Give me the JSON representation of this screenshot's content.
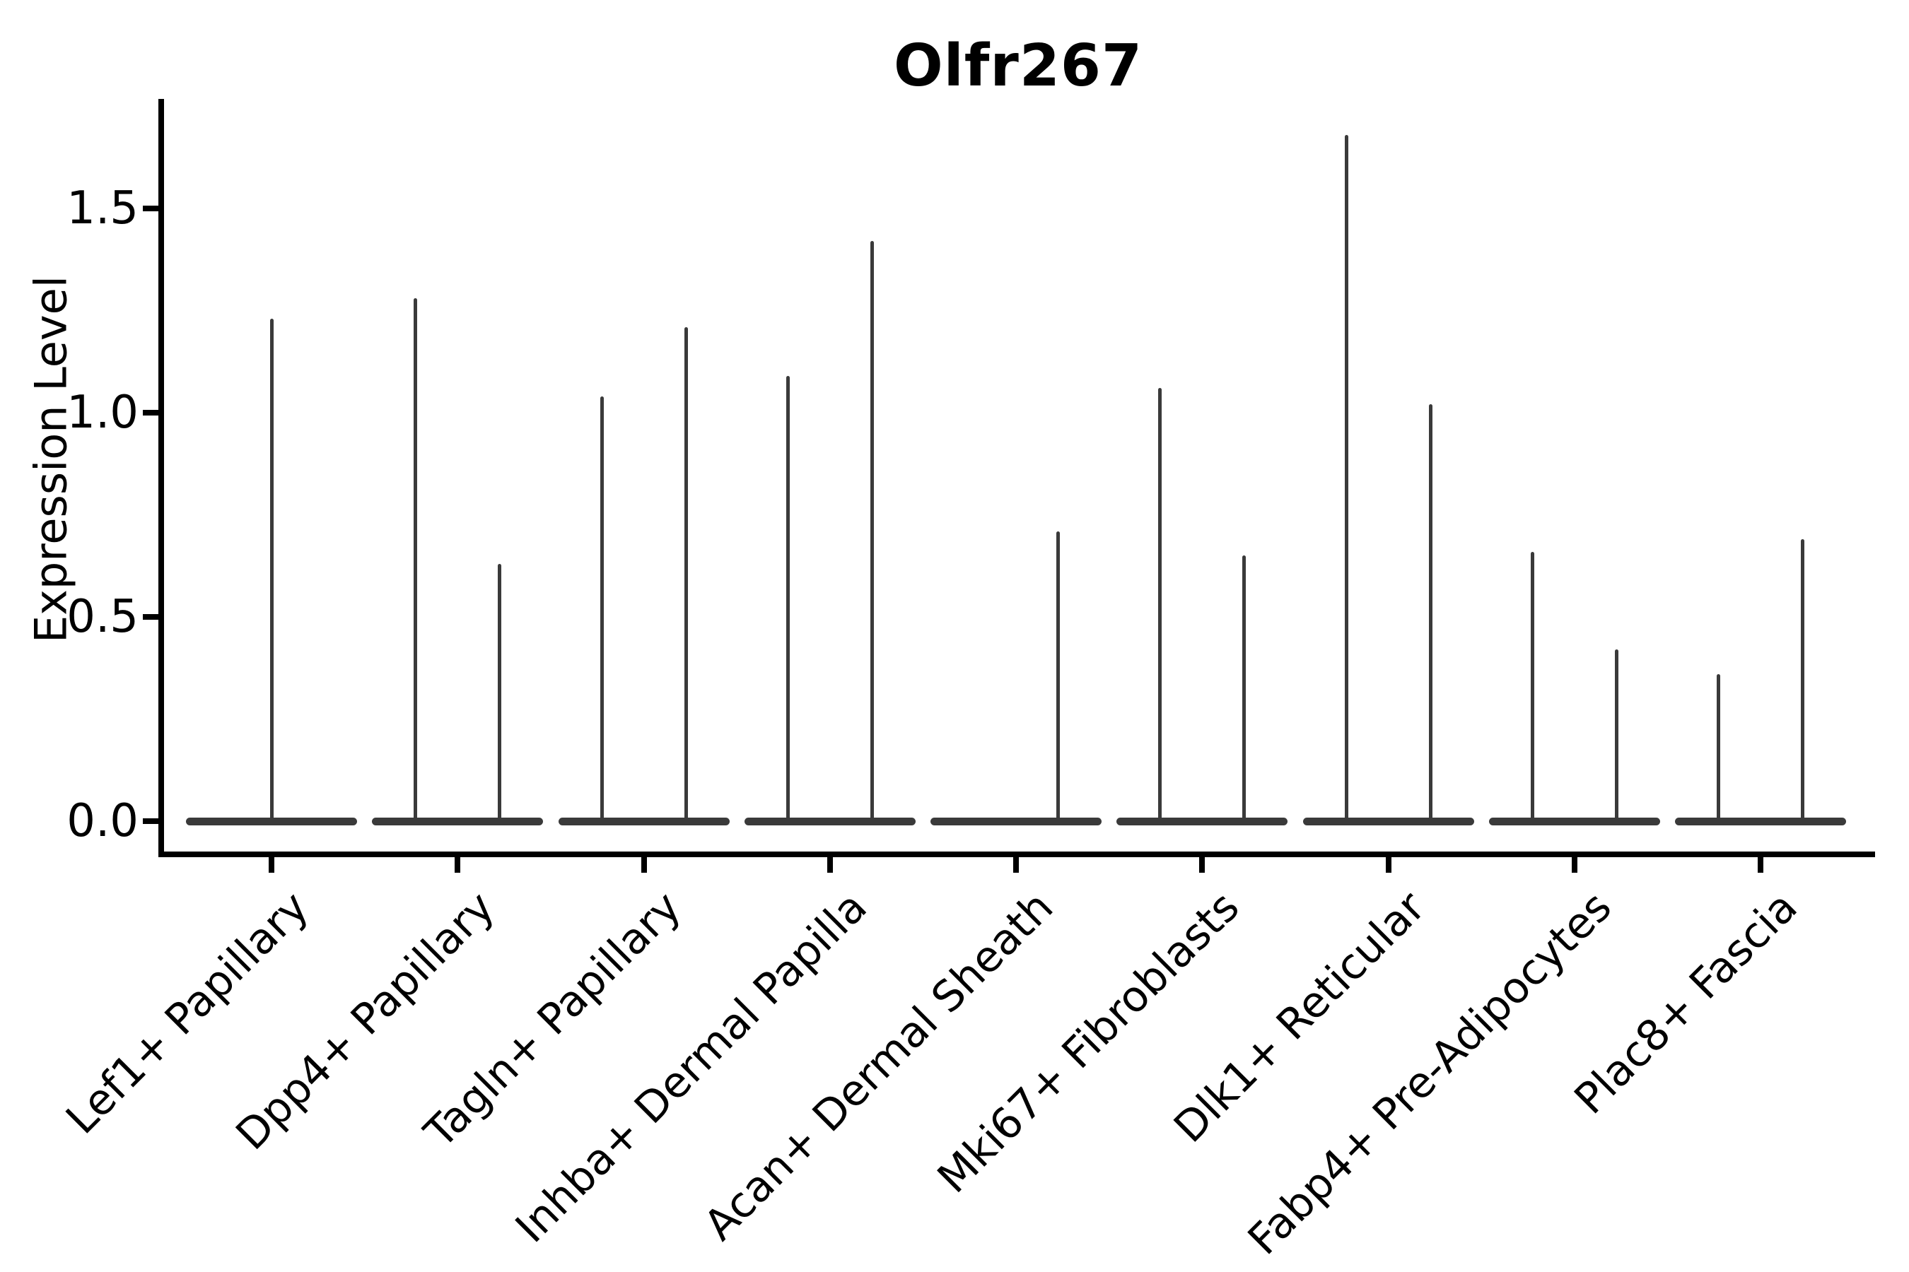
{
  "title": "Olfr267",
  "axes": {
    "y_label": "Expression Level",
    "y_ticks": [
      {
        "label": "0.0",
        "value": 0.0
      },
      {
        "label": "0.5",
        "value": 0.5
      },
      {
        "label": "1.0",
        "value": 1.0
      },
      {
        "label": "1.5",
        "value": 1.5
      }
    ],
    "x_tick_label_angle_deg": 45
  },
  "chart_data": {
    "type": "violin",
    "title": "Olfr267",
    "xlabel": "",
    "ylabel": "Expression Level",
    "ylim": [
      0,
      1.77
    ],
    "y_ticks": [
      0.0,
      0.5,
      1.0,
      1.5
    ],
    "grid": false,
    "legend_position": "none",
    "baseline_value": 0.0,
    "categories": [
      "Lef1+ Papillary",
      "Dpp4+ Papillary",
      "Tagln+ Papillary",
      "Inhba+ Dermal Papilla",
      "Acan+ Dermal Sheath",
      "Mki67+ Fibroblasts",
      "Dlk1+ Reticular",
      "Fabp4+ Pre-Adipocytes",
      "Plac8+ Fascia"
    ],
    "violins": [
      {
        "category": "Lef1+ Papillary",
        "spikes": [
          {
            "pos": "center",
            "max": 1.23
          }
        ]
      },
      {
        "category": "Dpp4+ Papillary",
        "spikes": [
          {
            "pos": "left",
            "max": 1.28
          },
          {
            "pos": "right",
            "max": 0.63
          }
        ]
      },
      {
        "category": "Tagln+ Papillary",
        "spikes": [
          {
            "pos": "left",
            "max": 1.04
          },
          {
            "pos": "right",
            "max": 1.21
          }
        ]
      },
      {
        "category": "Inhba+ Dermal Papilla",
        "spikes": [
          {
            "pos": "left",
            "max": 1.09
          },
          {
            "pos": "right",
            "max": 1.42
          }
        ]
      },
      {
        "category": "Acan+ Dermal Sheath",
        "spikes": [
          {
            "pos": "right",
            "max": 0.71
          }
        ]
      },
      {
        "category": "Mki67+ Fibroblasts",
        "spikes": [
          {
            "pos": "left",
            "max": 1.06
          },
          {
            "pos": "right",
            "max": 0.65
          }
        ]
      },
      {
        "category": "Dlk1+ Reticular",
        "spikes": [
          {
            "pos": "left",
            "max": 1.68
          },
          {
            "pos": "right",
            "max": 1.02
          }
        ]
      },
      {
        "category": "Fabp4+ Pre-Adipocytes",
        "spikes": [
          {
            "pos": "left",
            "max": 0.66
          },
          {
            "pos": "right",
            "max": 0.42
          }
        ]
      },
      {
        "category": "Plac8+ Fascia",
        "spikes": [
          {
            "pos": "left",
            "max": 0.36
          },
          {
            "pos": "right",
            "max": 0.69
          }
        ]
      }
    ]
  },
  "colors": {
    "violin_stroke": "#3a3a3a",
    "axis": "#000000",
    "text": "#000000",
    "background": "#ffffff"
  }
}
